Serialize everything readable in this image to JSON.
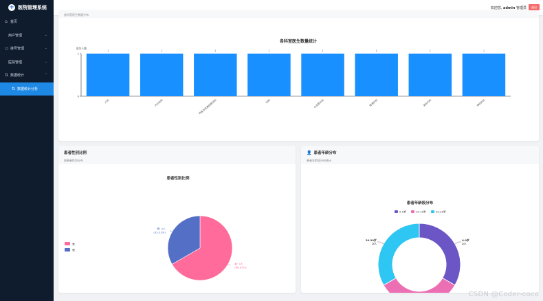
{
  "app": {
    "title": "医院管理系统"
  },
  "sidebar": {
    "items": [
      {
        "label": "首页",
        "icon": "home-icon"
      },
      {
        "label": "用户管理",
        "icon": ""
      },
      {
        "label": "挂号管理",
        "icon": "register-icon"
      },
      {
        "label": "医院管理",
        "icon": ""
      },
      {
        "label": "数据统计",
        "icon": "swap-icon"
      },
      {
        "label": "数据统计分析",
        "icon": "swap-icon"
      }
    ]
  },
  "header": {
    "welcome": "欢迎您,",
    "username": "admin",
    "role": "管理员",
    "logout": "退出"
  },
  "card1": {
    "subtitle": "各科室医生数量分布"
  },
  "card2": {
    "title": "患者性别比例",
    "subtitle": "按患者性别分布"
  },
  "card3": {
    "title": "患者年龄分布",
    "subtitle": "患者年龄段分布统计"
  },
  "chart_data": [
    {
      "type": "bar",
      "title": "各科室医生数量统计",
      "ylabel": "医生人数",
      "categories": [
        "儿科",
        "内分泌科",
        "呼吸与危重症医学科",
        "妇科",
        "心血管内科",
        "普通外科",
        "消化内科",
        "神经内科"
      ],
      "values": [
        1,
        1,
        1,
        1,
        1,
        1,
        1,
        1
      ],
      "ylim": [
        0,
        1
      ],
      "data_labels": [
        "1",
        "1",
        "1",
        "1",
        "1",
        "1",
        "1",
        "1"
      ],
      "color": "#1890ff"
    },
    {
      "type": "pie",
      "title": "患者性别比例",
      "labels": [
        "女",
        "男"
      ],
      "values": [
        4,
        2
      ],
      "colors": [
        "#ff6b9a",
        "#5470c6"
      ],
      "slice_labels": [
        [
          "女: 4人",
          "(66.67%)"
        ],
        [
          "男: 2人",
          "(33.33%)"
        ]
      ],
      "legend": "left"
    },
    {
      "type": "pie",
      "subtype": "donut",
      "title": "患者年龄段分布",
      "labels": [
        "0-9岁",
        "10-19岁",
        "20-29岁"
      ],
      "values": [
        2,
        2,
        2
      ],
      "colors": [
        "#6c55c5",
        "#ec6fb4",
        "#2ec6f2"
      ],
      "slice_labels": [
        [
          "0-9岁",
          "2人"
        ],
        [
          "10-19岁",
          "2人"
        ],
        [
          "20-29岁",
          "2人"
        ]
      ],
      "legend": "top"
    }
  ],
  "watermark": "CSDN @Coder-coco"
}
